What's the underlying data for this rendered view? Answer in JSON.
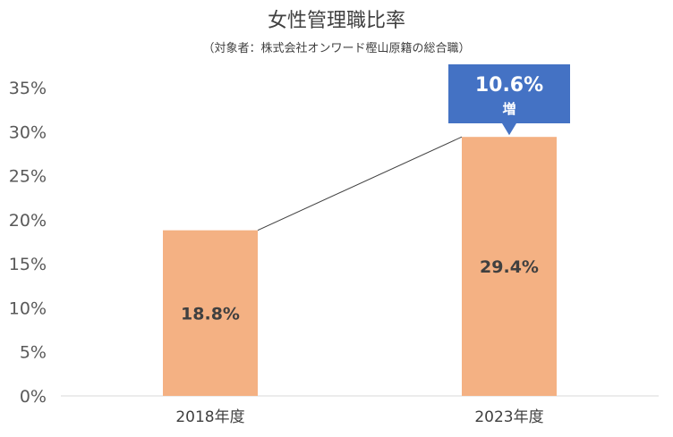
{
  "chart_data": {
    "type": "bar",
    "title": "女性管理職比率",
    "subtitle": "（対象者：株式会社オンワード樫山原籍の総合職）",
    "categories": [
      "2018年度",
      "2023年度"
    ],
    "values": [
      18.8,
      29.4
    ],
    "data_labels": [
      "18.8%",
      "29.4%"
    ],
    "y_ticks": [
      "0%",
      "5%",
      "10%",
      "15%",
      "20%",
      "25%",
      "30%",
      "35%"
    ],
    "ylim": [
      0,
      35
    ],
    "grid": false,
    "legend": "none",
    "bar_color": "#F4B183",
    "connector_line": true,
    "annotation": {
      "value_text": "10.6%",
      "suffix_text": "増",
      "color": "#4472C4"
    }
  }
}
